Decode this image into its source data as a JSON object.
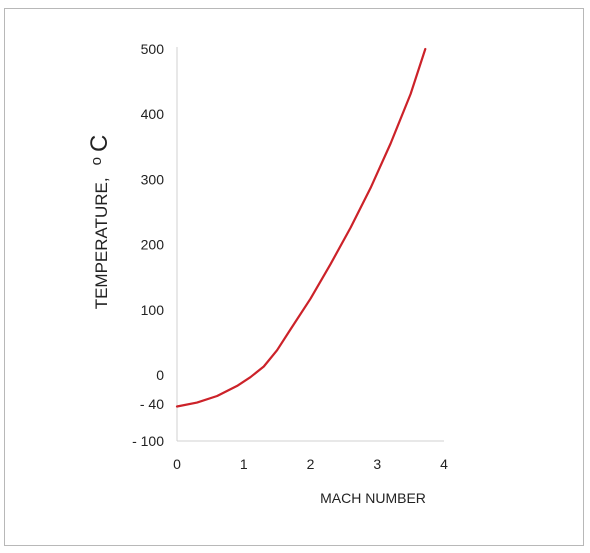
{
  "chart_data": {
    "type": "line",
    "title": "",
    "xlabel": "MACH  NUMBER",
    "ylabel": "TEMPERATURE,",
    "ylabel_unit": "C",
    "ylabel_unit_prefix": "o",
    "xlim": [
      0,
      4
    ],
    "ylim": [
      -100,
      500
    ],
    "x_ticks": [
      {
        "value": 0,
        "label": "0"
      },
      {
        "value": 1,
        "label": "1"
      },
      {
        "value": 2,
        "label": "2"
      },
      {
        "value": 3,
        "label": "3"
      },
      {
        "value": 4,
        "label": "4"
      }
    ],
    "y_ticks": [
      {
        "value": 500,
        "label": "500"
      },
      {
        "value": 400,
        "label": "400"
      },
      {
        "value": 300,
        "label": "300"
      },
      {
        "value": 200,
        "label": "200"
      },
      {
        "value": 100,
        "label": "100"
      },
      {
        "value": 0,
        "label": "0"
      },
      {
        "value": -40,
        "label": "- 40"
      },
      {
        "value": -100,
        "label": "- 100"
      }
    ],
    "grid": false,
    "legend": "none",
    "series": [
      {
        "color": "#cc2229",
        "points": [
          [
            0.0,
            -44
          ],
          [
            0.3,
            -38
          ],
          [
            0.6,
            -29
          ],
          [
            0.9,
            -15
          ],
          [
            1.1,
            -3
          ],
          [
            1.3,
            13
          ],
          [
            1.5,
            38
          ],
          [
            1.7,
            70
          ],
          [
            2.0,
            117
          ],
          [
            2.3,
            170
          ],
          [
            2.6,
            226
          ],
          [
            2.9,
            287
          ],
          [
            3.2,
            355
          ],
          [
            3.5,
            431
          ],
          [
            3.72,
            500
          ]
        ]
      }
    ]
  }
}
